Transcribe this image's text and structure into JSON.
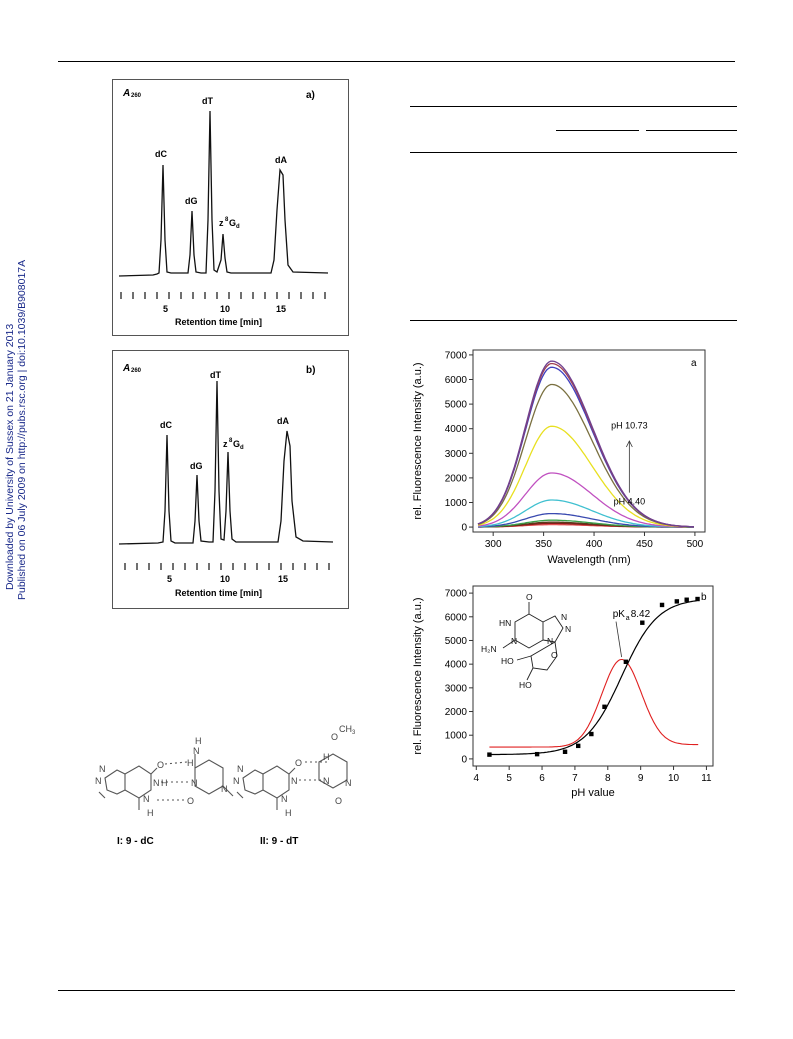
{
  "sidebar": {
    "line1": "Downloaded by University of Sussex on 21 January 2013",
    "line2": "Published on 06 July 2009 on http://pubs.rsc.org | doi:10.1039/B908017A"
  },
  "chromatogram_a": {
    "panel": "a)",
    "ylabel": "A",
    "ylabel_sub": "260",
    "xlabel": "Retention time [min]",
    "ticks": [
      "5",
      "10",
      "15"
    ],
    "peaks": {
      "dC": "dC",
      "dG": "dG",
      "dT": "dT",
      "z8Gd_main": "z",
      "z8Gd_sup": "8",
      "z8Gd_G": "G",
      "z8Gd_sub": "d",
      "dA": "dA"
    }
  },
  "chromatogram_b": {
    "panel": "b)",
    "ylabel": "A",
    "ylabel_sub": "260",
    "xlabel": "Retention time [min]",
    "ticks": [
      "5",
      "10",
      "15"
    ],
    "peaks": {
      "dC": "dC",
      "dG": "dG",
      "dT": "dT",
      "z8Gd_main": "z",
      "z8Gd_sup": "8",
      "z8Gd_G": "G",
      "z8Gd_sub": "d",
      "dA": "dA"
    }
  },
  "base_pairs": {
    "label_I": "I: 9 - dC",
    "label_II": "II: 9 - dT",
    "atoms": {
      "N": "N",
      "O": "O",
      "H": "H",
      "CH3": "CH",
      "CH3_sub": "3",
      "NH": "N—H"
    }
  },
  "chart_data": [
    {
      "type": "line",
      "panel": "a",
      "xlabel": "Wavelength (nm)",
      "ylabel": "rel. Fluorescence Intensity (a.u.)",
      "xlim": [
        280,
        510
      ],
      "ylim": [
        -200,
        7200
      ],
      "xticks": [
        300,
        350,
        400,
        450,
        500
      ],
      "yticks": [
        0,
        1000,
        2000,
        3000,
        4000,
        5000,
        6000,
        7000
      ],
      "annotations": [
        "pH 10.73",
        "pH 4.40"
      ],
      "peak_wavelength": 358,
      "series": [
        {
          "peak": 100,
          "color": "#e05050"
        },
        {
          "peak": 150,
          "color": "#8b1a1a"
        },
        {
          "peak": 200,
          "color": "#5a3a1a"
        },
        {
          "peak": 280,
          "color": "#3aa04a"
        },
        {
          "peak": 550,
          "color": "#3a4ab0"
        },
        {
          "peak": 1100,
          "color": "#40c0d0"
        },
        {
          "peak": 2200,
          "color": "#c050c0"
        },
        {
          "peak": 4100,
          "color": "#e8e020"
        },
        {
          "peak": 5800,
          "color": "#7a7040"
        },
        {
          "peak": 6500,
          "color": "#4040c0"
        },
        {
          "peak": 6650,
          "color": "#a04050"
        },
        {
          "peak": 6750,
          "color": "#704090"
        }
      ]
    },
    {
      "type": "line",
      "panel": "b",
      "xlabel": "pH value",
      "ylabel": "rel. Fluorescence Intensity (a.u.)",
      "xlim": [
        3.9,
        11.2
      ],
      "ylim": [
        -300,
        7300
      ],
      "xticks": [
        4,
        5,
        6,
        7,
        8,
        9,
        10,
        11
      ],
      "yticks": [
        0,
        1000,
        2000,
        3000,
        4000,
        5000,
        6000,
        7000
      ],
      "pka_label_main": "pK",
      "pka_label_sub": "a",
      "pka_label_value": "8.42",
      "series": [
        {
          "color": "#000000",
          "x": [
            4.4,
            5.85,
            6.7,
            7.1,
            7.5,
            7.9,
            8.55,
            9.05,
            9.65,
            10.1,
            10.4,
            10.73
          ],
          "y": [
            180,
            200,
            300,
            550,
            1050,
            2200,
            4100,
            5750,
            6500,
            6650,
            6720,
            6750
          ]
        },
        {
          "color": "#e02020",
          "fit": "derivative",
          "center": 8.42,
          "peak": 4200,
          "baseline_low": 500,
          "baseline_high": 600
        }
      ],
      "structure_atoms": {
        "O": "O",
        "HN": "HN",
        "N": "N",
        "H2N": "H₂N",
        "HO": "HO"
      }
    }
  ]
}
